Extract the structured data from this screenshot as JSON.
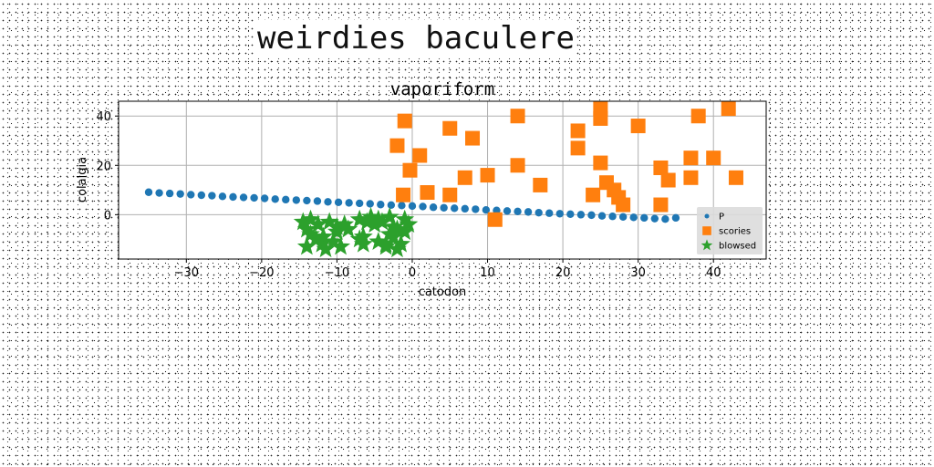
{
  "suptitle": "weirdies baculere",
  "chart_data": {
    "type": "scatter",
    "title": "vaporiform",
    "xlabel": "catodon",
    "ylabel": "colalgia",
    "xlim": [
      -39,
      47
    ],
    "ylim": [
      -18,
      46
    ],
    "xticks": [
      -30,
      -20,
      -10,
      0,
      10,
      20,
      30,
      40
    ],
    "yticks": [
      0,
      20,
      40
    ],
    "grid": true,
    "legend_position": "lower-right",
    "series": [
      {
        "name": "P",
        "marker": "circle",
        "color": "#1f77b4",
        "x": [
          -35,
          -33.6,
          -32.2,
          -30.8,
          -29.4,
          -28,
          -26.6,
          -25.2,
          -23.8,
          -22.4,
          -21,
          -19.6,
          -18.2,
          -16.8,
          -15.4,
          -14,
          -12.6,
          -11.2,
          -9.8,
          -8.4,
          -7,
          -5.6,
          -4.2,
          -2.8,
          -1.4,
          0,
          1.4,
          2.8,
          4.2,
          5.6,
          7,
          8.4,
          9.8,
          11.2,
          12.6,
          14,
          15.4,
          16.8,
          18.2,
          19.6,
          21,
          22.4,
          23.8,
          25.2,
          26.6,
          28,
          29.4,
          30.8,
          32.2,
          33.6,
          35
        ],
        "y": [
          9.1,
          8.8,
          8.6,
          8.4,
          8.1,
          7.9,
          7.7,
          7.4,
          7.2,
          7.0,
          6.8,
          6.6,
          6.3,
          6.1,
          5.9,
          5.7,
          5.5,
          5.2,
          5.0,
          4.8,
          4.6,
          4.4,
          4.1,
          3.9,
          3.7,
          3.5,
          3.3,
          3.0,
          2.8,
          2.6,
          2.4,
          2.2,
          1.9,
          1.7,
          1.5,
          1.3,
          1.1,
          0.8,
          0.6,
          0.4,
          0.2,
          0.0,
          -0.2,
          -0.5,
          -0.7,
          -0.9,
          -1.1,
          -1.3,
          -1.6,
          -1.8,
          -1.3
        ]
      },
      {
        "name": "scories",
        "marker": "square",
        "color": "#ff7f0e",
        "x": [
          -1,
          -2,
          -0.3,
          1,
          -1.2,
          2,
          5,
          5,
          7,
          8,
          10,
          11,
          14,
          14,
          17,
          22,
          22,
          24,
          25,
          25,
          25,
          25.8,
          26.8,
          27.4,
          28,
          30,
          33,
          33,
          34,
          37,
          37,
          38,
          40,
          42,
          43
        ],
        "y": [
          38,
          28,
          18,
          24,
          8,
          9,
          35,
          8,
          15,
          31,
          16,
          -2,
          40,
          20,
          12,
          34,
          27,
          8,
          43,
          39,
          21,
          13,
          10,
          7,
          4,
          36,
          19,
          4,
          14,
          23,
          15,
          40,
          23,
          43,
          15
        ]
      },
      {
        "name": "blowsed",
        "marker": "star",
        "color": "#2ca02c",
        "x": [
          -14.5,
          -13.5,
          -12.5,
          -11,
          -10,
          -9,
          -8.5,
          -7,
          -6,
          -5,
          -4,
          -3,
          -2.5,
          -2,
          -1,
          -0.5,
          -14,
          -12,
          -11.5,
          -10.5,
          -9.5,
          -7,
          -6.5,
          -4.5,
          -3.5,
          -2.5,
          -1.5,
          -13.5,
          -12.8,
          -10,
          -6.5,
          -3,
          -1,
          -14,
          -11.8,
          -5.5,
          -4.5,
          -2,
          -3.5
        ],
        "y": [
          -3,
          -2,
          -4,
          -3,
          -5,
          -4,
          -6,
          -2,
          -3,
          -4,
          -3,
          -1,
          -5,
          -6,
          -2,
          -4,
          -13,
          -12,
          -14,
          -11,
          -13,
          -10,
          -12,
          -11,
          -13,
          -9,
          -12,
          -8,
          -10,
          -7,
          -9,
          -8,
          -7,
          -6,
          -9,
          -1,
          -2,
          -14,
          -12
        ]
      }
    ]
  }
}
